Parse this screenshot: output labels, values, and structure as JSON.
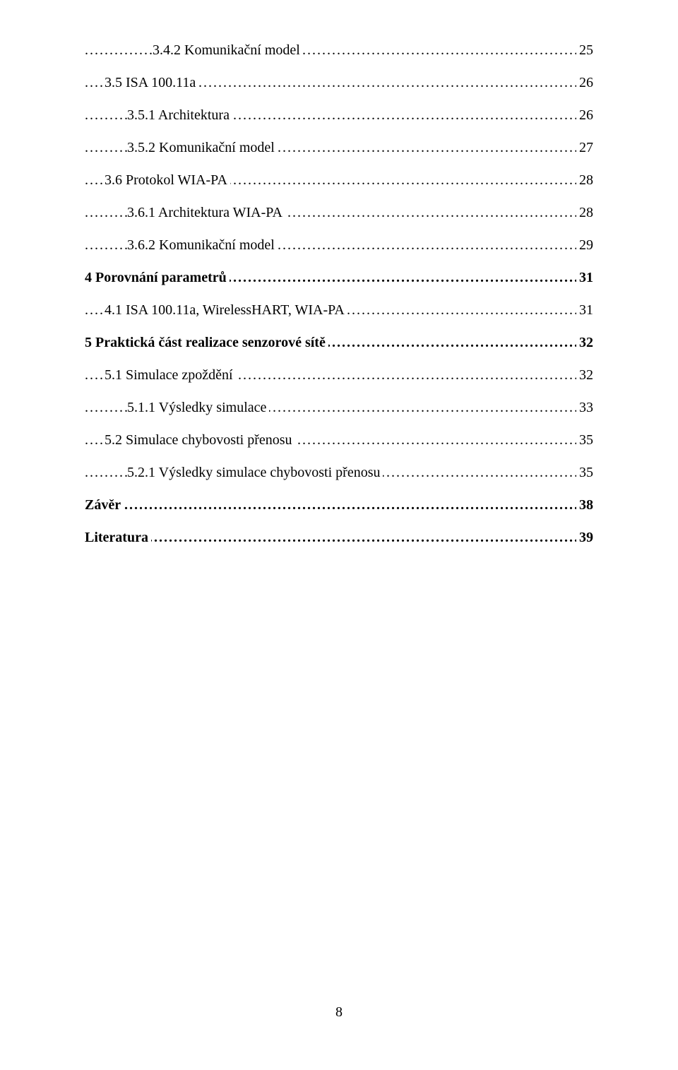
{
  "toc": {
    "entries": [
      {
        "label": "3.4.2   Komunikační model",
        "page": "25",
        "indent": 3,
        "bold": false
      },
      {
        "label": "3.5   ISA 100.11a",
        "page": "26",
        "indent": 1,
        "bold": false
      },
      {
        "label": "3.5.1   Architektura",
        "page": "26",
        "indent": 2,
        "bold": false
      },
      {
        "label": "3.5.2   Komunikační model",
        "page": "27",
        "indent": 2,
        "bold": false
      },
      {
        "label": "3.6   Protokol WIA-PA",
        "page": "28",
        "indent": 1,
        "bold": false
      },
      {
        "label": "3.6.1   Architektura WIA-PA",
        "page": "28",
        "indent": 2,
        "bold": false
      },
      {
        "label": "3.6.2   Komunikační model",
        "page": "29",
        "indent": 2,
        "bold": false
      },
      {
        "label": "4   Porovnání parametrů",
        "page": "31",
        "indent": 0,
        "bold": true
      },
      {
        "label": "4.1   ISA 100.11a, WirelessHART, WIA-PA",
        "page": "31",
        "indent": 1,
        "bold": false
      },
      {
        "label": "5   Praktická část realizace senzorové sítě",
        "page": "32",
        "indent": 0,
        "bold": true
      },
      {
        "label": "5.1   Simulace zpoždění",
        "page": "32",
        "indent": 1,
        "bold": false
      },
      {
        "label": "5.1.1   Výsledky simulace",
        "page": "33",
        "indent": 2,
        "bold": false
      },
      {
        "label": "5.2   Simulace chybovosti přenosu",
        "page": "35",
        "indent": 1,
        "bold": false
      },
      {
        "label": "5.2.1   Výsledky simulace chybovosti přenosu",
        "page": "35",
        "indent": 2,
        "bold": false
      },
      {
        "label": "Závěr",
        "page": "38",
        "indent": 0,
        "bold": true
      },
      {
        "label": "Literatura",
        "page": "39",
        "indent": 0,
        "bold": true
      }
    ]
  },
  "page_number": "8",
  "dot_leader": "........................................................................................................................................................................................................"
}
